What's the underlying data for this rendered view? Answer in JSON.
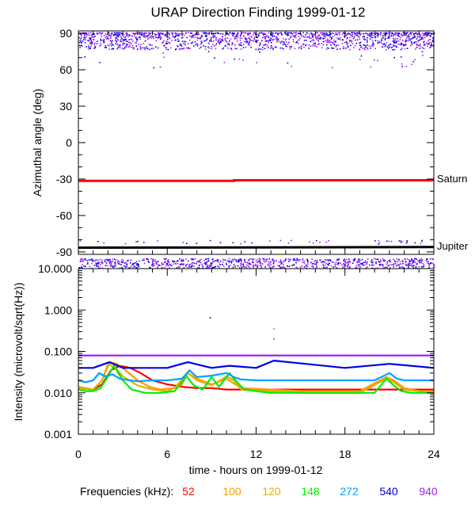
{
  "title": "URAP Direction Finding  1999-01-12",
  "xlabel": "time - hours on 1999-01-12",
  "frequencies_label": "Frequencies (kHz):",
  "colors": {
    "f52": "#ff0000",
    "f100": "#ff9900",
    "f120": "#e0b000",
    "f148": "#00ee00",
    "f272": "#00a0ff",
    "f540": "#0000e0",
    "f940": "#a020f0",
    "saturn": "#ff0000",
    "jupiter": "#000000"
  },
  "chart_data": [
    {
      "type": "scatter",
      "panel": "top",
      "ylabel": "Azimuthal angle (deg)",
      "xlim": [
        0,
        24
      ],
      "ylim": [
        -92,
        92
      ],
      "xticks": [
        "0",
        "6",
        "12",
        "18",
        "24"
      ],
      "yticks": [
        90,
        60,
        30,
        0,
        -30,
        -60,
        -90
      ],
      "ytick_labels": [
        "90",
        "60",
        "30",
        "0",
        "-30",
        "-60",
        "-90"
      ],
      "reference_lines": [
        {
          "name": "Saturn",
          "x": [
            0,
            10.5,
            10.5,
            24
          ],
          "y": [
            -31.5,
            -31.5,
            -31,
            -31
          ]
        },
        {
          "name": "Jupiter",
          "x": [
            0,
            24
          ],
          "y": [
            -86.5,
            -86
          ]
        }
      ],
      "scatter_bands": [
        {
          "y_range": [
            75,
            92
          ],
          "sparse_min": 62,
          "description": "dense purple/blue points 80-90 deg"
        },
        {
          "y_range": [
            -92,
            -80
          ],
          "description": "dense purple/blue points near -90 deg"
        }
      ]
    },
    {
      "type": "line",
      "panel": "bottom",
      "ylabel": "Intensity (microvolt/sqrt(Hz))",
      "xlim": [
        0,
        24
      ],
      "ylim": [
        0.001,
        10
      ],
      "yscale": "log",
      "xticks": [
        0,
        6,
        12,
        18,
        24
      ],
      "xtick_labels": [
        "0",
        "6",
        "12",
        "18",
        "24"
      ],
      "yticks": [
        10,
        1,
        0.1,
        0.01,
        0.001
      ],
      "ytick_labels": [
        "10.000",
        "1.000",
        "0.100",
        "0.010",
        "0.001"
      ],
      "series": [
        {
          "name": "52",
          "x": [
            0,
            1,
            1.6,
            2.2,
            2.8,
            3.5,
            4.2,
            5,
            6,
            7,
            8,
            9,
            10,
            11,
            12,
            14,
            16,
            18,
            20,
            21,
            22,
            23,
            24
          ],
          "y": [
            0.013,
            0.012,
            0.016,
            0.035,
            0.045,
            0.04,
            0.03,
            0.02,
            0.016,
            0.014,
            0.013,
            0.013,
            0.012,
            0.012,
            0.012,
            0.012,
            0.012,
            0.012,
            0.012,
            0.012,
            0.012,
            0.012,
            0.012
          ]
        },
        {
          "name": "100",
          "x": [
            0,
            1,
            1.6,
            2.1,
            2.6,
            3.2,
            4,
            4.8,
            5.5,
            6.5,
            7.4,
            8,
            9,
            10,
            11,
            13,
            15,
            17,
            19,
            20.8,
            21.3,
            22,
            23,
            24
          ],
          "y": [
            0.014,
            0.012,
            0.02,
            0.055,
            0.05,
            0.035,
            0.02,
            0.014,
            0.012,
            0.013,
            0.03,
            0.022,
            0.016,
            0.022,
            0.013,
            0.012,
            0.011,
            0.011,
            0.011,
            0.024,
            0.02,
            0.013,
            0.011,
            0.011
          ]
        },
        {
          "name": "120",
          "x": [
            0,
            1,
            1.6,
            2,
            2.5,
            3,
            4,
            5,
            6,
            7,
            7.4,
            8,
            9,
            10,
            10.5,
            11,
            13,
            15,
            17,
            19,
            20.8,
            21.3,
            22,
            24
          ],
          "y": [
            0.013,
            0.012,
            0.02,
            0.05,
            0.04,
            0.025,
            0.015,
            0.012,
            0.011,
            0.016,
            0.03,
            0.02,
            0.015,
            0.025,
            0.02,
            0.012,
            0.011,
            0.01,
            0.01,
            0.01,
            0.022,
            0.018,
            0.012,
            0.01
          ]
        },
        {
          "name": "148",
          "x": [
            0,
            0.5,
            1,
            1.5,
            2,
            2.4,
            3,
            3.6,
            4.5,
            5.5,
            6.5,
            7.3,
            7.8,
            8.4,
            9,
            9.5,
            10.2,
            10.6,
            11.2,
            12,
            13,
            14,
            16,
            18,
            20,
            20.8,
            21.3,
            21.8,
            22.5,
            24
          ],
          "y": [
            0.012,
            0.011,
            0.011,
            0.013,
            0.025,
            0.045,
            0.02,
            0.012,
            0.01,
            0.01,
            0.011,
            0.025,
            0.015,
            0.012,
            0.024,
            0.014,
            0.03,
            0.02,
            0.012,
            0.011,
            0.01,
            0.01,
            0.01,
            0.01,
            0.01,
            0.022,
            0.015,
            0.011,
            0.01,
            0.01
          ]
        },
        {
          "name": "272",
          "x": [
            0,
            0.5,
            1,
            1.4,
            1.8,
            2.3,
            2.8,
            3.5,
            4,
            5,
            6,
            7,
            7.5,
            8,
            9,
            10,
            10.5,
            11,
            12,
            14,
            16,
            18,
            20,
            21,
            21.5,
            22,
            24
          ],
          "y": [
            0.02,
            0.018,
            0.02,
            0.03,
            0.025,
            0.028,
            0.022,
            0.02,
            0.019,
            0.02,
            0.02,
            0.022,
            0.035,
            0.024,
            0.026,
            0.03,
            0.024,
            0.021,
            0.02,
            0.02,
            0.02,
            0.02,
            0.02,
            0.03,
            0.022,
            0.02,
            0.02
          ]
        },
        {
          "name": "540",
          "x": [
            0,
            0.4,
            1,
            2.1,
            3,
            6,
            7.4,
            9,
            10.2,
            12,
            13.2,
            18,
            21,
            24
          ],
          "y": [
            0.04,
            0.04,
            0.04,
            0.055,
            0.04,
            0.04,
            0.055,
            0.04,
            0.045,
            0.04,
            0.06,
            0.04,
            0.05,
            0.04
          ]
        },
        {
          "name": "940",
          "x": [
            0,
            24
          ],
          "y": [
            0.08,
            0.08
          ]
        }
      ],
      "spikes": [
        {
          "x": 8.9,
          "y": 0.65,
          "series": "940"
        },
        {
          "x": 13.2,
          "y": 0.35,
          "series": "100"
        },
        {
          "x": 13.2,
          "y": 0.2,
          "series": "148"
        }
      ]
    }
  ]
}
